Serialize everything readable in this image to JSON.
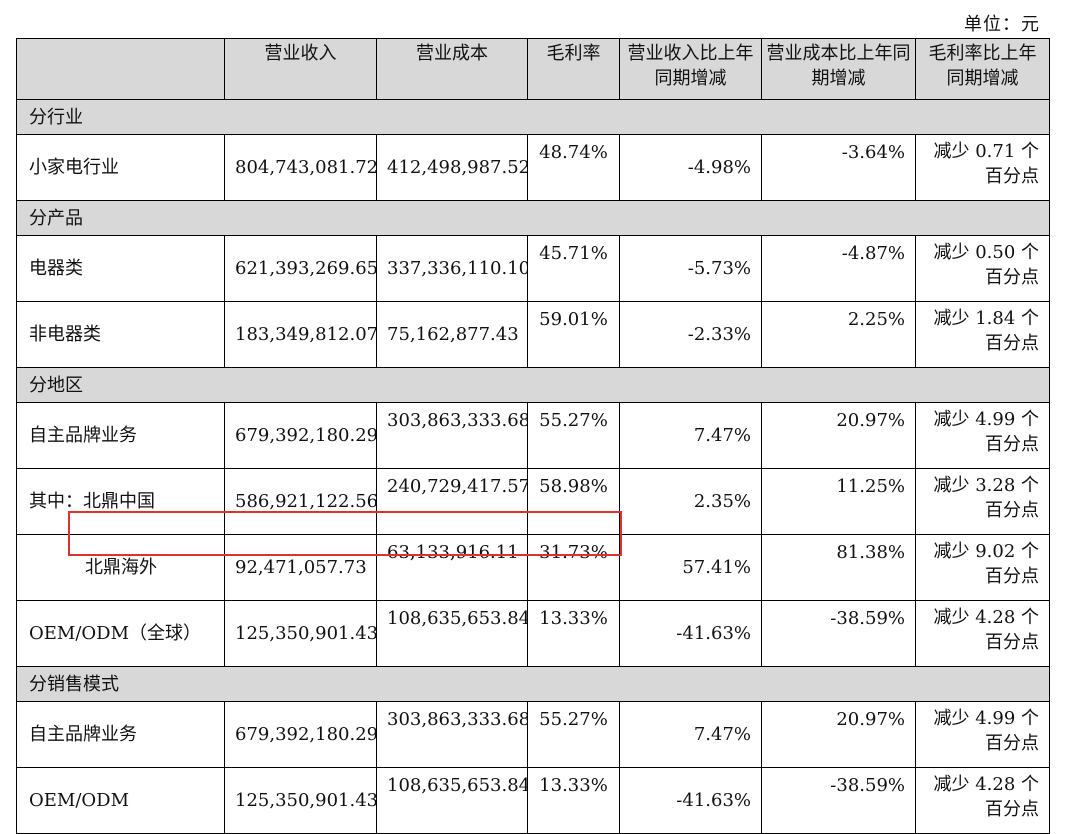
{
  "unit_label": "单位：元",
  "headers": [
    "",
    "营业收入",
    "营业成本",
    "毛利率",
    "营业收入比上年同期增减",
    "营业成本比上年同期增减",
    "毛利率比上年同期增减"
  ],
  "sections": [
    {
      "title": "分行业",
      "rows": [
        {
          "label": "小家电行业",
          "revenue": "804,743,081.72",
          "cost": "412,498,987.52",
          "margin": "48.74%",
          "rev_chg": "-4.98%",
          "cost_chg": "-3.64%",
          "gm_line1": "减少 0.71 个",
          "gm_line2": "百分点"
        }
      ]
    },
    {
      "title": "分产品",
      "rows": [
        {
          "label": "电器类",
          "revenue": "621,393,269.65",
          "cost": "337,336,110.10",
          "margin": "45.71%",
          "rev_chg": "-5.73%",
          "cost_chg": "-4.87%",
          "gm_line1": "减少 0.50 个",
          "gm_line2": "百分点"
        },
        {
          "label": "非电器类",
          "revenue": "183,349,812.07",
          "cost": "75,162,877.43",
          "margin": "59.01%",
          "rev_chg": "-2.33%",
          "cost_chg": "2.25%",
          "gm_line1": "减少 1.84 个",
          "gm_line2": "百分点"
        }
      ]
    },
    {
      "title": "分地区",
      "rows": [
        {
          "label": "自主品牌业务",
          "revenue": "679,392,180.29",
          "cost": "303,863,333.68",
          "margin": "55.27%",
          "rev_chg": "7.47%",
          "cost_chg": "20.97%",
          "gm_line1": "减少 4.99 个",
          "gm_line2": "百分点"
        },
        {
          "label": "其中：北鼎中国",
          "revenue": "586,921,122.56",
          "cost": "240,729,417.57",
          "margin": "58.98%",
          "rev_chg": "2.35%",
          "cost_chg": "11.25%",
          "gm_line1": "减少 3.28 个",
          "gm_line2": "百分点"
        },
        {
          "label": "北鼎海外",
          "revenue": "92,471,057.73",
          "cost": "63,133,916.11",
          "margin": "31.73%",
          "rev_chg": "57.41%",
          "cost_chg": "81.38%",
          "gm_line1": "减少 9.02 个",
          "gm_line2": "百分点"
        },
        {
          "label": "OEM/ODM（全球）",
          "revenue": "125,350,901.43",
          "cost": "108,635,653.84",
          "margin": "13.33%",
          "rev_chg": "-41.63%",
          "cost_chg": "-38.59%",
          "gm_line1": "减少 4.28 个",
          "gm_line2": "百分点"
        }
      ]
    },
    {
      "title": "分销售模式",
      "rows": [
        {
          "label": "自主品牌业务",
          "revenue": "679,392,180.29",
          "cost": "303,863,333.68",
          "margin": "55.27%",
          "rev_chg": "7.47%",
          "cost_chg": "20.97%",
          "gm_line1": "减少 4.99 个",
          "gm_line2": "百分点"
        },
        {
          "label": "OEM/ODM",
          "revenue": "125,350,901.43",
          "cost": "108,635,653.84",
          "margin": "13.33%",
          "rev_chg": "-41.63%",
          "cost_chg": "-38.59%",
          "gm_line1": "减少 4.28 个",
          "gm_line2": "百分点"
        }
      ]
    }
  ],
  "highlight_color": "#e03030"
}
